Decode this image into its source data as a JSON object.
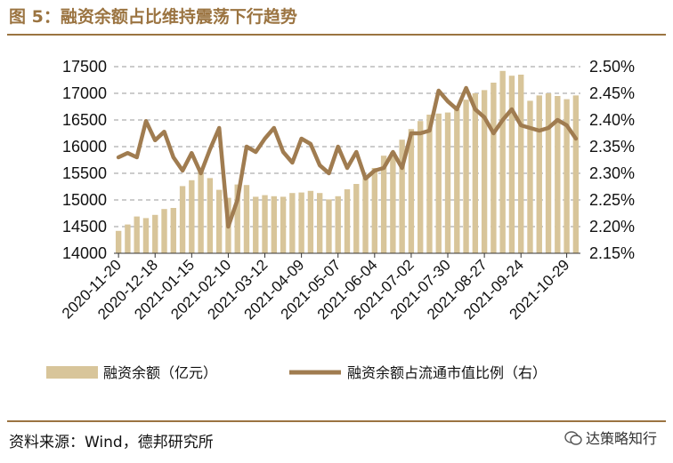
{
  "title": "图 5：融资余额占比维持震荡下行趋势",
  "source": "资料来源：Wind，德邦研究所",
  "watermark": "达策略知行",
  "colors": {
    "bar": "#d8c59a",
    "line": "#a07c50",
    "accent": "#9b7441"
  },
  "chart_data": {
    "type": "bar+line",
    "categories": [
      "2020-11-20",
      "2020-11-27",
      "2020-12-04",
      "2020-12-11",
      "2020-12-18",
      "2020-12-25",
      "2021-01-01",
      "2021-01-08",
      "2021-01-15",
      "2021-01-22",
      "2021-01-29",
      "2021-02-05",
      "2021-02-10",
      "2021-02-19",
      "2021-02-26",
      "2021-03-05",
      "2021-03-12",
      "2021-03-19",
      "2021-03-26",
      "2021-04-02",
      "2021-04-09",
      "2021-04-16",
      "2021-04-23",
      "2021-04-30",
      "2021-05-07",
      "2021-05-14",
      "2021-05-21",
      "2021-05-28",
      "2021-06-04",
      "2021-06-11",
      "2021-06-18",
      "2021-06-25",
      "2021-07-02",
      "2021-07-09",
      "2021-07-16",
      "2021-07-23",
      "2021-07-30",
      "2021-08-06",
      "2021-08-13",
      "2021-08-20",
      "2021-08-27",
      "2021-09-03",
      "2021-09-10",
      "2021-09-17",
      "2021-09-24",
      "2021-10-01",
      "2021-10-08",
      "2021-10-15",
      "2021-10-22",
      "2021-10-29",
      "2021-11-05"
    ],
    "xtick_labels": [
      "2020-11-20",
      "2020-12-18",
      "2021-01-15",
      "2021-02-10",
      "2021-03-12",
      "2021-04-09",
      "2021-05-07",
      "2021-06-04",
      "2021-07-02",
      "2021-07-30",
      "2021-08-27",
      "2021-09-24",
      "2021-10-29"
    ],
    "series": [
      {
        "name": "融资余额（亿元）",
        "type": "bar",
        "axis": "left",
        "values": [
          14420,
          14540,
          14690,
          14660,
          14720,
          14830,
          14850,
          15260,
          15370,
          15600,
          15410,
          15190,
          15040,
          15290,
          15280,
          15060,
          15090,
          15070,
          15060,
          15130,
          15140,
          15170,
          15130,
          15010,
          15070,
          15200,
          15300,
          15420,
          15600,
          15830,
          15900,
          16130,
          16330,
          16480,
          16600,
          16620,
          16640,
          16700,
          16880,
          17000,
          17060,
          17200,
          17420,
          17330,
          17350,
          16860,
          16960,
          17000,
          16950,
          16890,
          16960
        ]
      },
      {
        "name": "融资余额占流通市值比例（右）",
        "type": "line",
        "axis": "right",
        "values": [
          2.33,
          2.338,
          2.33,
          2.398,
          2.362,
          2.378,
          2.33,
          2.305,
          2.338,
          2.3,
          2.345,
          2.385,
          2.2,
          2.25,
          2.35,
          2.34,
          2.365,
          2.385,
          2.34,
          2.32,
          2.365,
          2.355,
          2.315,
          2.3,
          2.35,
          2.31,
          2.34,
          2.29,
          2.305,
          2.31,
          2.34,
          2.31,
          2.375,
          2.375,
          2.38,
          2.455,
          2.435,
          2.42,
          2.46,
          2.42,
          2.405,
          2.375,
          2.4,
          2.42,
          2.39,
          2.385,
          2.38,
          2.385,
          2.4,
          2.39,
          2.365
        ]
      }
    ],
    "y_left": {
      "min": 14000,
      "max": 17500,
      "ticks": [
        "14000",
        "14500",
        "15000",
        "15500",
        "16000",
        "16500",
        "17000",
        "17500"
      ]
    },
    "y_right": {
      "min": 2.15,
      "max": 2.5,
      "ticks": [
        "2.15%",
        "2.20%",
        "2.25%",
        "2.30%",
        "2.35%",
        "2.40%",
        "2.45%",
        "2.50%"
      ]
    },
    "grid": "horizontal, dashed",
    "legend": "bottom"
  }
}
